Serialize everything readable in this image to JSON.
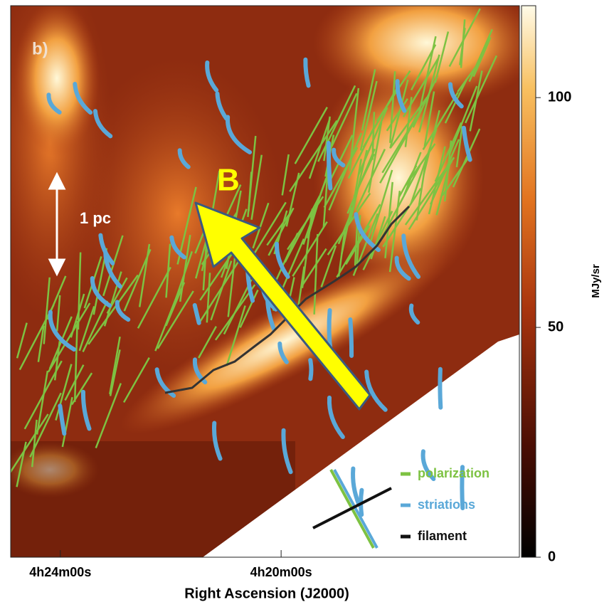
{
  "chart_data": {
    "type": "image-map",
    "panel_label": "b)",
    "scale_label": "1 pc",
    "field_label": "B",
    "xlabel": "Right Ascension (J2000)",
    "xlim": [
      15894,
      15341
    ],
    "xticks": [
      {
        "value": 15840,
        "label": "4h24m00s"
      },
      {
        "value": 15600,
        "label": "4h20m00s"
      }
    ],
    "colorbar_label": "MJy/sr",
    "clim": [
      0,
      120
    ],
    "cticks": [
      0,
      50,
      100
    ],
    "legend": [
      {
        "name": "polarization",
        "color": "#7dc242"
      },
      {
        "name": "striations",
        "color": "#5aa8d8"
      },
      {
        "name": "filament",
        "color": "#111111"
      }
    ]
  }
}
